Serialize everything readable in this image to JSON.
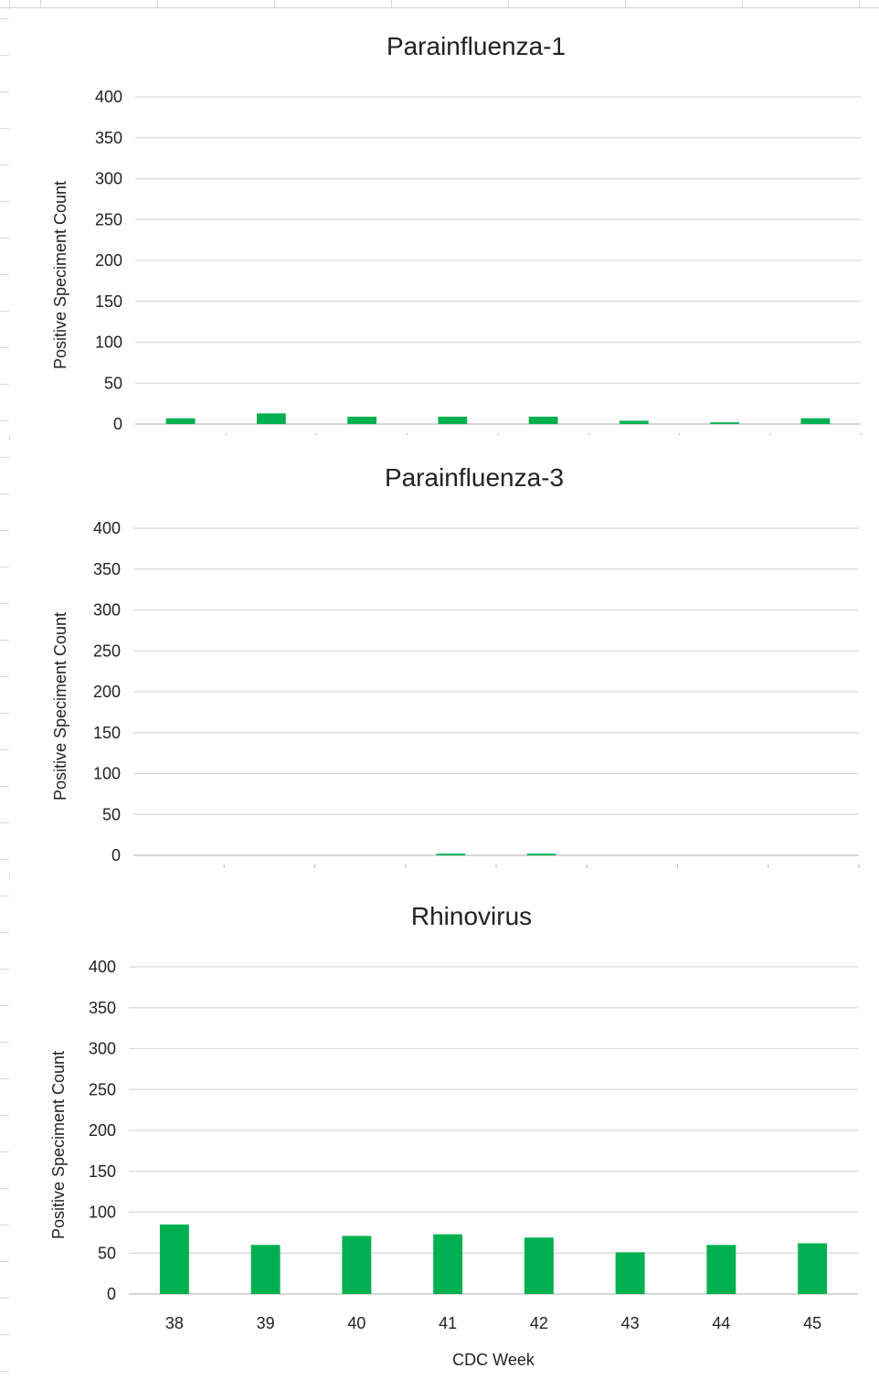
{
  "colors": {
    "bar": "#00b050",
    "gridline": "#d9d9d9",
    "text": "#222222"
  },
  "chart_data": [
    {
      "type": "bar",
      "title": "Parainfluenza-1",
      "ylabel": "Positive Speciment Count",
      "xlabel": "",
      "ylim": [
        0,
        400
      ],
      "yticks": [
        0,
        50,
        100,
        150,
        200,
        250,
        300,
        350,
        400
      ],
      "categories": [
        "38",
        "39",
        "40",
        "41",
        "42",
        "43",
        "44",
        "45"
      ],
      "show_category_labels": false,
      "values": [
        7,
        13,
        9,
        9,
        9,
        4,
        2,
        7
      ],
      "grid": true
    },
    {
      "type": "bar",
      "title": "Parainfluenza-3",
      "ylabel": "Positive Speciment Count",
      "xlabel": "",
      "ylim": [
        0,
        400
      ],
      "yticks": [
        0,
        50,
        100,
        150,
        200,
        250,
        300,
        350,
        400
      ],
      "categories": [
        "38",
        "39",
        "40",
        "41",
        "42",
        "43",
        "44",
        "45"
      ],
      "show_category_labels": false,
      "values": [
        0,
        0,
        0,
        2,
        2,
        0,
        0,
        0
      ],
      "grid": true
    },
    {
      "type": "bar",
      "title": "Rhinovirus",
      "ylabel": "Positive Speciment Count",
      "xlabel": "CDC Week",
      "ylim": [
        0,
        400
      ],
      "yticks": [
        0,
        50,
        100,
        150,
        200,
        250,
        300,
        350,
        400
      ],
      "categories": [
        "38",
        "39",
        "40",
        "41",
        "42",
        "43",
        "44",
        "45"
      ],
      "show_category_labels": true,
      "values": [
        85,
        60,
        71,
        73,
        69,
        51,
        60,
        62
      ],
      "grid": true
    }
  ]
}
